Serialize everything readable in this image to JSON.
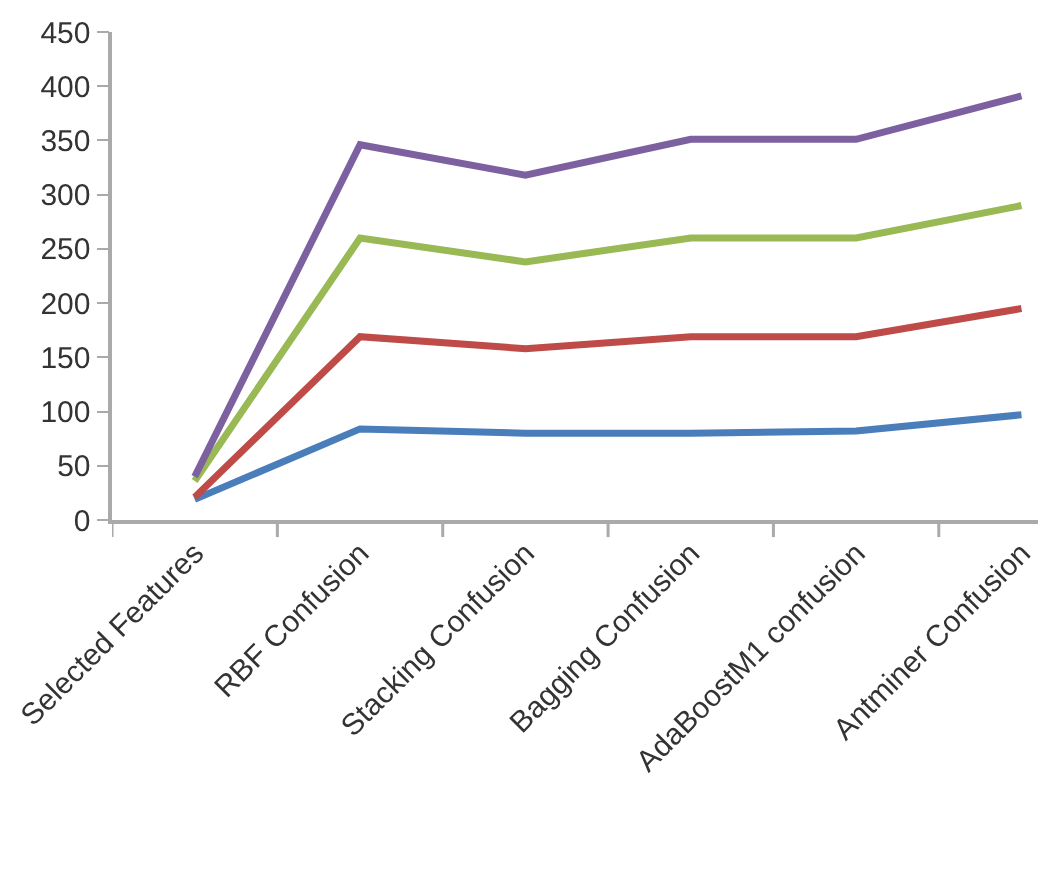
{
  "chart_data": {
    "type": "line",
    "categories": [
      "Selected Features",
      "RBF Confusion",
      "Stacking Confusion",
      "Bagging Confusion",
      "AdaBoostM1 confusion",
      "Antminer Confusion"
    ],
    "series": [
      {
        "color": "#4a7ebb",
        "values": [
          19,
          84,
          80,
          80,
          82,
          97
        ]
      },
      {
        "color": "#be4b48",
        "values": [
          21,
          169,
          158,
          169,
          169,
          195
        ]
      },
      {
        "color": "#98b954",
        "values": [
          36,
          260,
          238,
          260,
          260,
          290
        ]
      },
      {
        "color": "#7d60a0",
        "values": [
          40,
          346,
          318,
          351,
          351,
          391
        ]
      }
    ],
    "ylim": [
      0,
      450
    ],
    "yticks": [
      0,
      50,
      100,
      150,
      200,
      250,
      300,
      350,
      400,
      450
    ],
    "grid": false,
    "marker": "none",
    "line_style": "solid"
  }
}
